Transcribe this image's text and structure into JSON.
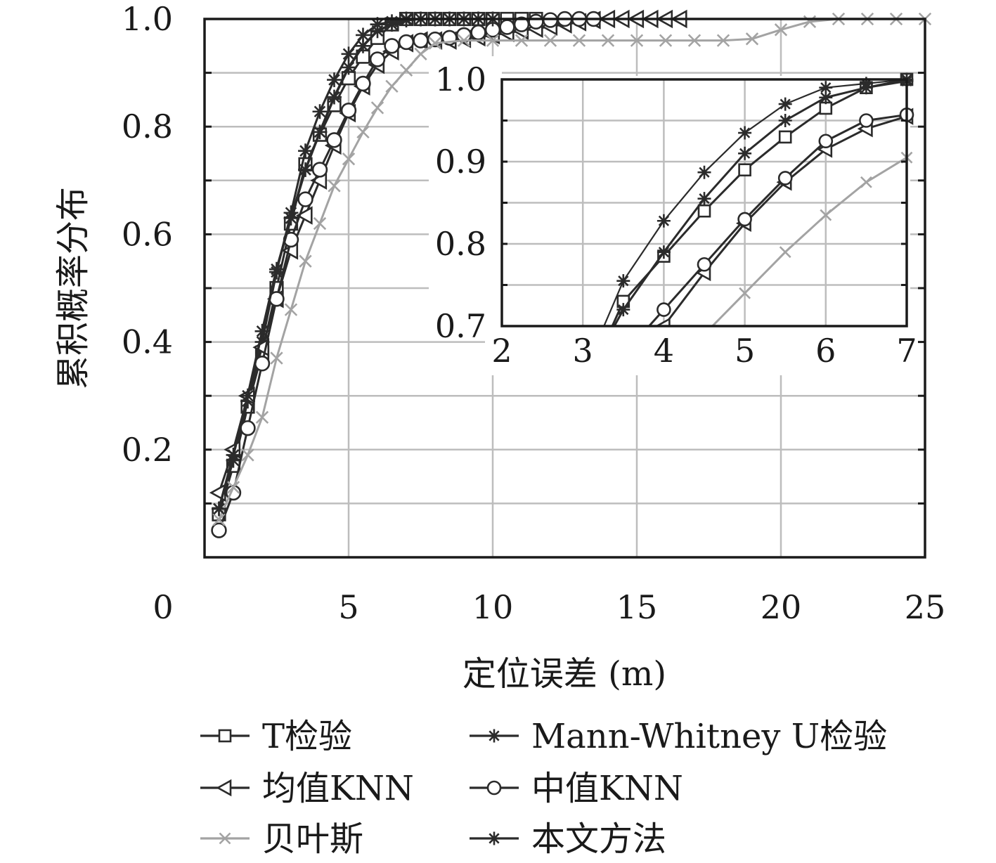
{
  "chart_data": {
    "type": "line",
    "xlabel": "定位误差 (m)",
    "ylabel": "累积概率分布",
    "xlim": [
      0,
      25
    ],
    "ylim": [
      0,
      1.0
    ],
    "x_ticks": [
      "0",
      "5",
      "10",
      "15",
      "20",
      "25"
    ],
    "y_ticks": [
      "0.2",
      "0.4",
      "0.6",
      "0.8",
      "1.0"
    ],
    "grid": true,
    "legend_position": "bottom",
    "series": [
      {
        "name": "T检验",
        "marker": "square",
        "color": "#2b2b2b",
        "points": [
          [
            0.5,
            0.08
          ],
          [
            1,
            0.17
          ],
          [
            1.5,
            0.28
          ],
          [
            2,
            0.38
          ],
          [
            2.5,
            0.5
          ],
          [
            3,
            0.62
          ],
          [
            3.5,
            0.73
          ],
          [
            4,
            0.785
          ],
          [
            4.5,
            0.84
          ],
          [
            5,
            0.89
          ],
          [
            5.5,
            0.93
          ],
          [
            6,
            0.965
          ],
          [
            6.5,
            0.99
          ],
          [
            7,
            1.0
          ],
          [
            7.5,
            1.0
          ],
          [
            8,
            1.0
          ],
          [
            8.5,
            1.0
          ],
          [
            9,
            1.0
          ],
          [
            9.5,
            1.0
          ],
          [
            10,
            1.0
          ],
          [
            10.5,
            1.0
          ],
          [
            11,
            1.0
          ],
          [
            11.5,
            1.0
          ]
        ]
      },
      {
        "name": "Mann-Whitney U检验",
        "marker": "asterisk",
        "color": "#2b2b2b",
        "points": [
          [
            0.5,
            0.09
          ],
          [
            1,
            0.18
          ],
          [
            1.5,
            0.29
          ],
          [
            2,
            0.4
          ],
          [
            2.5,
            0.53
          ],
          [
            3,
            0.64
          ],
          [
            3.5,
            0.755
          ],
          [
            4,
            0.828
          ],
          [
            4.5,
            0.887
          ],
          [
            5,
            0.935
          ],
          [
            5.5,
            0.97
          ],
          [
            6,
            0.99
          ],
          [
            6.5,
            0.995
          ],
          [
            7,
            1.0
          ],
          [
            7.5,
            1.0
          ],
          [
            8,
            1.0
          ],
          [
            8.5,
            1.0
          ],
          [
            9,
            1.0
          ],
          [
            9.5,
            1.0
          ],
          [
            10,
            1.0
          ]
        ]
      },
      {
        "name": "均值KNN",
        "marker": "triangle-left",
        "color": "#2b2b2b",
        "points": [
          [
            0.5,
            0.12
          ],
          [
            1,
            0.2
          ],
          [
            1.5,
            0.3
          ],
          [
            2,
            0.39
          ],
          [
            2.5,
            0.48
          ],
          [
            3,
            0.57
          ],
          [
            3.5,
            0.635
          ],
          [
            4,
            0.7
          ],
          [
            4.5,
            0.765
          ],
          [
            5,
            0.825
          ],
          [
            5.5,
            0.875
          ],
          [
            6,
            0.915
          ],
          [
            6.5,
            0.94
          ],
          [
            7,
            0.955
          ],
          [
            7.5,
            0.96
          ],
          [
            8,
            0.96
          ],
          [
            8.5,
            0.96
          ],
          [
            9,
            0.963
          ],
          [
            9.5,
            0.966
          ],
          [
            10,
            0.97
          ],
          [
            10.5,
            0.974
          ],
          [
            11,
            0.978
          ],
          [
            11.5,
            0.982
          ],
          [
            12,
            0.986
          ],
          [
            12.5,
            0.99
          ],
          [
            13,
            0.994
          ],
          [
            13.5,
            0.998
          ],
          [
            14,
            1.0
          ],
          [
            14.5,
            1.0
          ],
          [
            15,
            1.0
          ],
          [
            15.5,
            1.0
          ],
          [
            16,
            1.0
          ],
          [
            16.5,
            1.0
          ]
        ]
      },
      {
        "name": "中值KNN",
        "marker": "circle",
        "color": "#2b2b2b",
        "points": [
          [
            0.5,
            0.05
          ],
          [
            1,
            0.12
          ],
          [
            1.5,
            0.24
          ],
          [
            2,
            0.36
          ],
          [
            2.5,
            0.48
          ],
          [
            3,
            0.59
          ],
          [
            3.5,
            0.665
          ],
          [
            4,
            0.72
          ],
          [
            4.5,
            0.775
          ],
          [
            5,
            0.83
          ],
          [
            5.5,
            0.88
          ],
          [
            6,
            0.925
          ],
          [
            6.5,
            0.95
          ],
          [
            7,
            0.957
          ],
          [
            7.5,
            0.96
          ],
          [
            8,
            0.962
          ],
          [
            8.5,
            0.965
          ],
          [
            9,
            0.97
          ],
          [
            9.5,
            0.975
          ],
          [
            10,
            0.98
          ],
          [
            10.5,
            0.985
          ],
          [
            11,
            0.99
          ],
          [
            11.5,
            0.995
          ],
          [
            12,
            0.998
          ],
          [
            12.5,
            1.0
          ],
          [
            13,
            1.0
          ],
          [
            13.5,
            1.0
          ]
        ]
      },
      {
        "name": "贝叶斯",
        "marker": "x",
        "color": "#a3a3a3",
        "points": [
          [
            0.5,
            0.07
          ],
          [
            1,
            0.13
          ],
          [
            1.5,
            0.19
          ],
          [
            2,
            0.26
          ],
          [
            2.5,
            0.37
          ],
          [
            3,
            0.46
          ],
          [
            3.5,
            0.55
          ],
          [
            4,
            0.62
          ],
          [
            4.5,
            0.69
          ],
          [
            5,
            0.74
          ],
          [
            5.5,
            0.79
          ],
          [
            6,
            0.835
          ],
          [
            6.5,
            0.875
          ],
          [
            7,
            0.905
          ],
          [
            7.5,
            0.935
          ],
          [
            8,
            0.955
          ],
          [
            9,
            0.96
          ],
          [
            10,
            0.96
          ],
          [
            11,
            0.96
          ],
          [
            12,
            0.96
          ],
          [
            13,
            0.96
          ],
          [
            14,
            0.96
          ],
          [
            15,
            0.96
          ],
          [
            16,
            0.96
          ],
          [
            17,
            0.96
          ],
          [
            18,
            0.96
          ],
          [
            19,
            0.963
          ],
          [
            20,
            0.98
          ],
          [
            21,
            0.995
          ],
          [
            22,
            1.0
          ],
          [
            23,
            1.0
          ],
          [
            24,
            1.0
          ],
          [
            25,
            1.0
          ]
        ]
      },
      {
        "name": "本文方法",
        "marker": "asterisk",
        "color": "#2b2b2b",
        "points": [
          [
            0.5,
            0.09
          ],
          [
            1,
            0.19
          ],
          [
            1.5,
            0.3
          ],
          [
            2,
            0.42
          ],
          [
            2.5,
            0.535
          ],
          [
            3,
            0.63
          ],
          [
            3.5,
            0.72
          ],
          [
            4,
            0.79
          ],
          [
            4.5,
            0.855
          ],
          [
            5,
            0.91
          ],
          [
            5.5,
            0.95
          ],
          [
            6,
            0.978
          ],
          [
            6.5,
            0.99
          ],
          [
            7,
            0.998
          ],
          [
            7.5,
            1.0
          ],
          [
            8,
            1.0
          ],
          [
            8.5,
            1.0
          ],
          [
            9,
            1.0
          ],
          [
            9.5,
            1.0
          ],
          [
            10,
            1.0
          ]
        ]
      }
    ],
    "inset": {
      "xlim": [
        2,
        7
      ],
      "ylim": [
        0.7,
        1.0
      ],
      "x_ticks": [
        "2",
        "3",
        "4",
        "5",
        "6",
        "7"
      ],
      "y_ticks": [
        "0.7",
        "0.8",
        "0.9",
        "1.0"
      ]
    }
  },
  "legend": {
    "items": [
      {
        "label": "T检验",
        "marker": "square",
        "color": "#2b2b2b"
      },
      {
        "label": "Mann-Whitney U检验",
        "marker": "asterisk",
        "color": "#2b2b2b"
      },
      {
        "label": "均值KNN",
        "marker": "triangle-left",
        "color": "#2b2b2b"
      },
      {
        "label": "中值KNN",
        "marker": "circle",
        "color": "#2b2b2b"
      },
      {
        "label": "贝叶斯",
        "marker": "x",
        "color": "#a3a3a3"
      },
      {
        "label": "本文方法",
        "marker": "asterisk",
        "color": "#2b2b2b"
      }
    ]
  }
}
